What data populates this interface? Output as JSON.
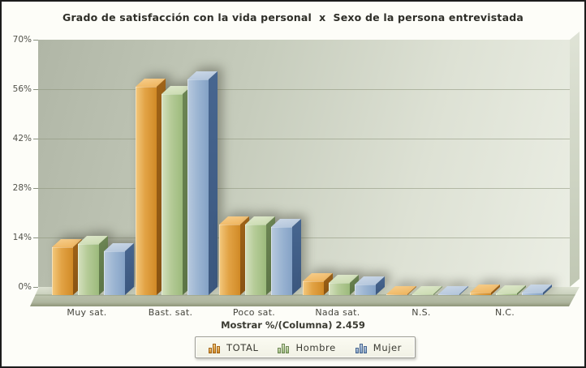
{
  "header": {
    "title": "Grado de satisfacción con la vida personal  x  Sexo de la persona entrevistada"
  },
  "chart_data": {
    "type": "bar",
    "style": "3d-grouped-columns",
    "title": "Grado de satisfacción con la vida personal  x  Sexo de la persona entrevistada",
    "categories": [
      "Muy sat.",
      "Bast. sat.",
      "Poco sat.",
      "Nada sat.",
      "N.S.",
      "N.C."
    ],
    "series": [
      {
        "name": "TOTAL",
        "values": [
          13.5,
          59.0,
          20.0,
          3.8,
          0.3,
          0.6
        ]
      },
      {
        "name": "Hombre",
        "values": [
          14.5,
          57.0,
          20.0,
          3.4,
          0.3,
          0.5
        ]
      },
      {
        "name": "Mujer",
        "values": [
          12.5,
          61.0,
          19.3,
          3.0,
          0.3,
          0.6
        ]
      }
    ],
    "xlabel": "Mostrar %/(Columna) 2.459",
    "ylabel": "",
    "ylim": [
      0,
      70
    ],
    "yticks": [
      70,
      56,
      42,
      28,
      14,
      0
    ],
    "ytick_labels": [
      "70%",
      "56%",
      "42%",
      "28%",
      "14%",
      "0%"
    ],
    "grid": true,
    "legend_position": "bottom"
  },
  "legend": {
    "items": [
      "TOTAL",
      "Hombre",
      "Mujer"
    ]
  },
  "colors": {
    "series": {
      "TOTAL": {
        "front_light": "#f3c97e",
        "front": "#e2a345",
        "front_dark": "#d18a26",
        "side": "#a26417",
        "side_dark": "#8a5412",
        "top": "#eeb259",
        "top_light": "#f6cf8f"
      },
      "Hombre": {
        "front_light": "#d5e1bf",
        "front": "#b5cb97",
        "front_dark": "#9cba7c",
        "side": "#6d8754",
        "side_dark": "#5d7647",
        "top": "#c9daae",
        "top_light": "#dfe8cd"
      },
      "Mujer": {
        "front_light": "#b9cade",
        "front": "#9db6d3",
        "front_dark": "#84a2c6",
        "side": "#476690",
        "side_dark": "#3b577e",
        "top": "#b0c3da",
        "top_light": "#cdd9e7"
      }
    },
    "wall_dark": "#b0b6a6",
    "wall_light": "#ebeee4",
    "gridline": "#8c947a",
    "title_text": "#2e2e28",
    "label_text": "#45453d"
  }
}
